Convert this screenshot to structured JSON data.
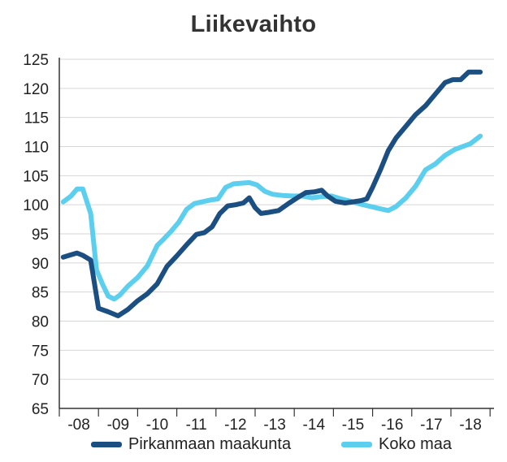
{
  "chart_data": {
    "type": "line",
    "title": "Liikevaihto",
    "xlabel": "",
    "ylabel": "",
    "ylim": [
      65,
      125
    ],
    "yticks": [
      65,
      70,
      75,
      80,
      85,
      90,
      95,
      100,
      105,
      110,
      115,
      120,
      125
    ],
    "xlim": [
      2007.5,
      2018.6
    ],
    "xticks": [
      {
        "label": "-08",
        "x": 2008.0
      },
      {
        "label": "-09",
        "x": 2009.0
      },
      {
        "label": "-10",
        "x": 2010.0
      },
      {
        "label": "-11",
        "x": 2011.0
      },
      {
        "label": "-12",
        "x": 2012.0
      },
      {
        "label": "-13",
        "x": 2013.0
      },
      {
        "label": "-14",
        "x": 2014.0
      },
      {
        "label": "-15",
        "x": 2015.0
      },
      {
        "label": "-16",
        "x": 2016.0
      },
      {
        "label": "-17",
        "x": 2017.0
      },
      {
        "label": "-18",
        "x": 2018.0
      }
    ],
    "grid": true,
    "legend_position": "bottom",
    "series": [
      {
        "name": "Pirkanmaan maakunta",
        "color": "#1b4f82",
        "x": [
          2007.6,
          2007.75,
          2007.95,
          2008.1,
          2008.3,
          2008.5,
          2008.75,
          2009.0,
          2009.25,
          2009.5,
          2009.75,
          2010.0,
          2010.25,
          2010.5,
          2010.75,
          2011.0,
          2011.2,
          2011.4,
          2011.6,
          2011.8,
          2012.0,
          2012.2,
          2012.35,
          2012.5,
          2012.65,
          2012.85,
          2013.1,
          2013.35,
          2013.6,
          2013.8,
          2014.0,
          2014.2,
          2014.35,
          2014.55,
          2014.8,
          2015.0,
          2015.2,
          2015.35,
          2015.5,
          2015.7,
          2015.9,
          2016.1,
          2016.35,
          2016.6,
          2016.85,
          2017.1,
          2017.35,
          2017.55,
          2017.75,
          2017.95,
          2018.1,
          2018.25
        ],
        "values": [
          91.0,
          91.3,
          91.7,
          91.3,
          90.5,
          82.2,
          81.6,
          80.9,
          82.0,
          83.5,
          84.7,
          86.4,
          89.4,
          91.2,
          93.1,
          94.9,
          95.2,
          96.2,
          98.5,
          99.8,
          100.0,
          100.3,
          101.2,
          99.5,
          98.5,
          98.7,
          99.0,
          100.2,
          101.3,
          102.1,
          102.2,
          102.5,
          101.5,
          100.6,
          100.3,
          100.5,
          100.7,
          101.0,
          103.0,
          106.0,
          109.3,
          111.5,
          113.5,
          115.5,
          117.0,
          119.0,
          121.0,
          121.5,
          121.5,
          122.8,
          122.8,
          122.8
        ]
      },
      {
        "name": "Koko maa",
        "color": "#5ccfee",
        "x": [
          2007.6,
          2007.8,
          2007.95,
          2008.1,
          2008.3,
          2008.45,
          2008.6,
          2008.75,
          2008.9,
          2009.05,
          2009.25,
          2009.5,
          2009.75,
          2010.0,
          2010.15,
          2010.35,
          2010.55,
          2010.75,
          2010.95,
          2011.15,
          2011.35,
          2011.55,
          2011.75,
          2011.95,
          2012.15,
          2012.35,
          2012.55,
          2012.75,
          2012.95,
          2013.2,
          2013.45,
          2013.7,
          2013.95,
          2014.2,
          2014.45,
          2014.7,
          2014.95,
          2015.2,
          2015.45,
          2015.7,
          2015.9,
          2016.1,
          2016.35,
          2016.6,
          2016.85,
          2017.1,
          2017.35,
          2017.6,
          2017.8,
          2018.0,
          2018.25
        ],
        "values": [
          100.5,
          101.5,
          102.7,
          102.7,
          98.5,
          88.8,
          86.4,
          84.3,
          83.8,
          84.5,
          86.0,
          87.5,
          89.5,
          93.0,
          94.0,
          95.4,
          97.0,
          99.2,
          100.2,
          100.5,
          100.8,
          101.0,
          103.0,
          103.6,
          103.7,
          103.8,
          103.4,
          102.3,
          101.8,
          101.6,
          101.5,
          101.5,
          101.2,
          101.4,
          101.5,
          101.0,
          100.6,
          100.1,
          99.7,
          99.3,
          99.0,
          99.7,
          101.2,
          103.2,
          106.0,
          107.0,
          108.5,
          109.5,
          110.0,
          110.5,
          111.8
        ]
      }
    ]
  }
}
